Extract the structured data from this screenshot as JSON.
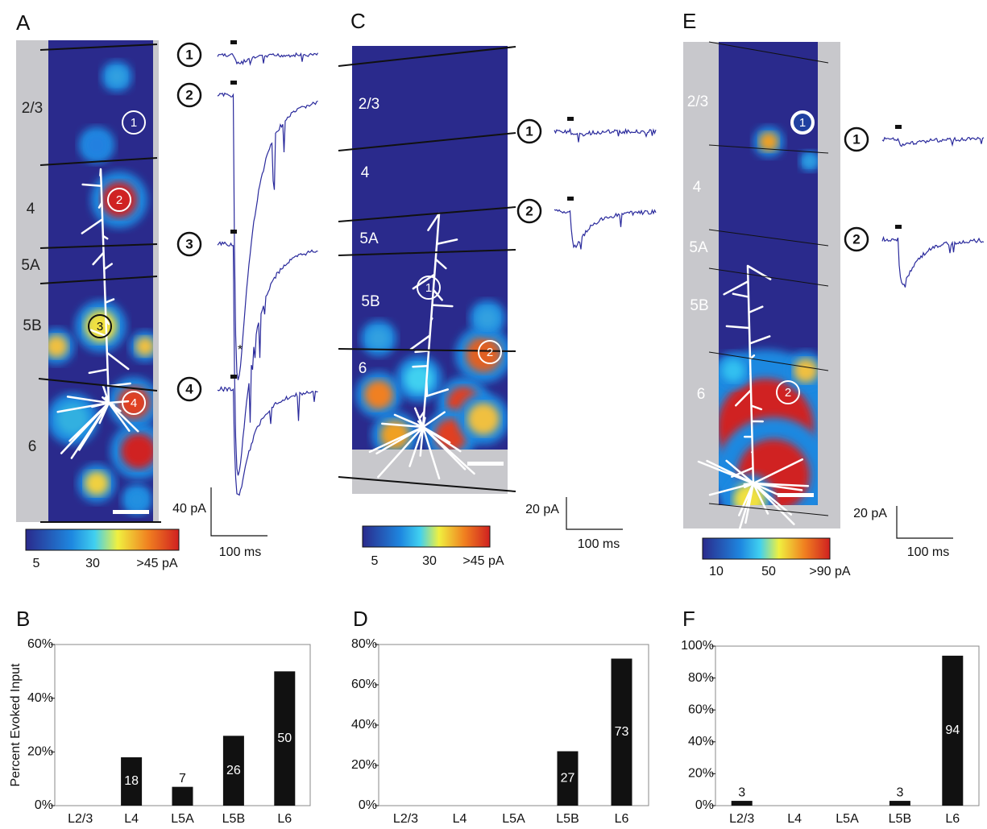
{
  "panels": [
    {
      "letter": "A",
      "layers": [
        "2/3",
        "4",
        "5A",
        "5B",
        "6"
      ],
      "markers": [
        "1",
        "2",
        "3",
        "4"
      ],
      "traces": [
        "1",
        "2",
        "3",
        "4"
      ],
      "asterisk": "*",
      "colorbar": [
        "5",
        "30",
        ">45 pA"
      ],
      "scale": [
        "40 pA",
        "100 ms"
      ]
    },
    {
      "letter": "C",
      "layers": [
        "2/3",
        "4",
        "5A",
        "5B",
        "6"
      ],
      "markers": [
        "1",
        "2"
      ],
      "traces": [
        "1",
        "2"
      ],
      "colorbar": [
        "5",
        "30",
        ">45 pA"
      ],
      "scale": [
        "20 pA",
        "100 ms"
      ]
    },
    {
      "letter": "E",
      "layers": [
        "2/3",
        "4",
        "5A",
        "5B",
        "6"
      ],
      "markers": [
        "1",
        "2"
      ],
      "traces": [
        "1",
        "2"
      ],
      "colorbar": [
        "10",
        "50",
        ">90 pA"
      ],
      "scale": [
        "20 pA",
        "100 ms"
      ]
    }
  ],
  "chart_data": [
    {
      "type": "bar",
      "letter": "B",
      "y_label": "Percent Evoked Input",
      "categories": [
        "L2/3",
        "L4",
        "L5A",
        "L5B",
        "L6"
      ],
      "values": [
        0,
        18,
        7,
        26,
        50
      ],
      "color": "#111111",
      "ylim": [
        0,
        60
      ],
      "yticks": [
        {
          "value": 0,
          "label": "0%"
        },
        {
          "value": 20,
          "label": "20%"
        },
        {
          "value": 40,
          "label": "40%"
        },
        {
          "value": 60,
          "label": "60%"
        }
      ]
    },
    {
      "type": "bar",
      "letter": "D",
      "categories": [
        "L2/3",
        "L4",
        "L5A",
        "L5B",
        "L6"
      ],
      "values": [
        0,
        0,
        0,
        27,
        73
      ],
      "color": "#111111",
      "ylim": [
        0,
        80
      ],
      "yticks": [
        {
          "value": 0,
          "label": "0%"
        },
        {
          "value": 20,
          "label": "20%"
        },
        {
          "value": 40,
          "label": "40%"
        },
        {
          "value": 60,
          "label": "60%"
        },
        {
          "value": 80,
          "label": "80%"
        }
      ]
    },
    {
      "type": "bar",
      "letter": "F",
      "categories": [
        "L2/3",
        "L4",
        "L5A",
        "L5B",
        "L6"
      ],
      "values": [
        3,
        0,
        0,
        3,
        94
      ],
      "color": "#111111",
      "ylim": [
        0,
        100
      ],
      "yticks": [
        {
          "value": 0,
          "label": "0%"
        },
        {
          "value": 20,
          "label": "20%"
        },
        {
          "value": 40,
          "label": "40%"
        },
        {
          "value": 60,
          "label": "60%"
        },
        {
          "value": 80,
          "label": "80%"
        },
        {
          "value": 100,
          "label": "100%"
        }
      ]
    }
  ]
}
